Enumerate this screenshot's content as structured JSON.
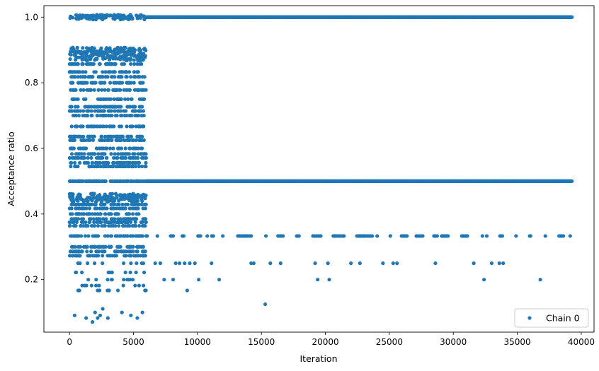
{
  "chart_data": {
    "type": "scatter",
    "xlabel": "Iteration",
    "ylabel": "Acceptance ratio",
    "xlim": [
      -2000,
      41000
    ],
    "ylim": [
      0.04,
      1.035
    ],
    "x_ticks": [
      0,
      5000,
      10000,
      15000,
      20000,
      25000,
      30000,
      35000,
      40000
    ],
    "x_tick_labels": [
      "0",
      "5000",
      "10000",
      "15000",
      "20000",
      "25000",
      "30000",
      "35000",
      "40000"
    ],
    "y_ticks": [
      0.2,
      0.4,
      0.6,
      0.8,
      1.0
    ],
    "y_tick_labels": [
      "0.2",
      "0.4",
      "0.6",
      "0.8",
      "1.0"
    ],
    "grid": false,
    "legend_position": "bottom-right",
    "colors": {
      "series": "#1f77b4",
      "axes": "#000000",
      "legend_border": "#cccccc"
    },
    "series": [
      {
        "name": "Chain 0",
        "marker": "circle",
        "segments": [
          {
            "x_range": [
              0,
              6000
            ],
            "y_levels": [
              1.0,
              0.9,
              0.889,
              0.875,
              0.857,
              0.833,
              0.818,
              0.8,
              0.778,
              0.75,
              0.727,
              0.714,
              0.7,
              0.667,
              0.636,
              0.625,
              0.6,
              0.583,
              0.571,
              0.556,
              0.545,
              0.5,
              0.455,
              0.444,
              0.429,
              0.417,
              0.4,
              0.385,
              0.375,
              0.364,
              0.333,
              0.3,
              0.286,
              0.273,
              0.25,
              0.222,
              0.2,
              0.182,
              0.167
            ],
            "pattern": "dense"
          },
          {
            "x_range": [
              6000,
              39300
            ],
            "y_levels": [
              1.0,
              0.5
            ],
            "pattern": "continuous"
          },
          {
            "x_range": [
              6000,
              39300
            ],
            "y_levels": [
              0.333
            ],
            "pattern": "sparse"
          }
        ],
        "points": [
          {
            "x": 400,
            "y": 0.091
          },
          {
            "x": 1300,
            "y": 0.083
          },
          {
            "x": 1800,
            "y": 0.071
          },
          {
            "x": 2000,
            "y": 0.1
          },
          {
            "x": 2200,
            "y": 0.083
          },
          {
            "x": 2400,
            "y": 0.091
          },
          {
            "x": 2600,
            "y": 0.111
          },
          {
            "x": 3000,
            "y": 0.083
          },
          {
            "x": 4100,
            "y": 0.1
          },
          {
            "x": 4800,
            "y": 0.091
          },
          {
            "x": 5700,
            "y": 0.1
          },
          {
            "x": 5300,
            "y": 0.083
          },
          {
            "x": 6700,
            "y": 0.25
          },
          {
            "x": 7100,
            "y": 0.25
          },
          {
            "x": 7400,
            "y": 0.2
          },
          {
            "x": 8100,
            "y": 0.2
          },
          {
            "x": 8300,
            "y": 0.25
          },
          {
            "x": 8600,
            "y": 0.25
          },
          {
            "x": 9000,
            "y": 0.25
          },
          {
            "x": 9200,
            "y": 0.167
          },
          {
            "x": 9400,
            "y": 0.25
          },
          {
            "x": 9800,
            "y": 0.25
          },
          {
            "x": 10100,
            "y": 0.2
          },
          {
            "x": 11100,
            "y": 0.25
          },
          {
            "x": 11700,
            "y": 0.2
          },
          {
            "x": 14200,
            "y": 0.25
          },
          {
            "x": 14400,
            "y": 0.25
          },
          {
            "x": 15300,
            "y": 0.125
          },
          {
            "x": 15700,
            "y": 0.25
          },
          {
            "x": 16500,
            "y": 0.25
          },
          {
            "x": 19200,
            "y": 0.25
          },
          {
            "x": 19400,
            "y": 0.2
          },
          {
            "x": 20200,
            "y": 0.25
          },
          {
            "x": 20300,
            "y": 0.2
          },
          {
            "x": 22000,
            "y": 0.25
          },
          {
            "x": 22700,
            "y": 0.25
          },
          {
            "x": 24500,
            "y": 0.25
          },
          {
            "x": 25300,
            "y": 0.25
          },
          {
            "x": 25600,
            "y": 0.25
          },
          {
            "x": 28600,
            "y": 0.25
          },
          {
            "x": 31600,
            "y": 0.25
          },
          {
            "x": 32400,
            "y": 0.2
          },
          {
            "x": 33000,
            "y": 0.25
          },
          {
            "x": 33600,
            "y": 0.25
          },
          {
            "x": 33900,
            "y": 0.25
          },
          {
            "x": 36800,
            "y": 0.2
          }
        ]
      }
    ]
  }
}
